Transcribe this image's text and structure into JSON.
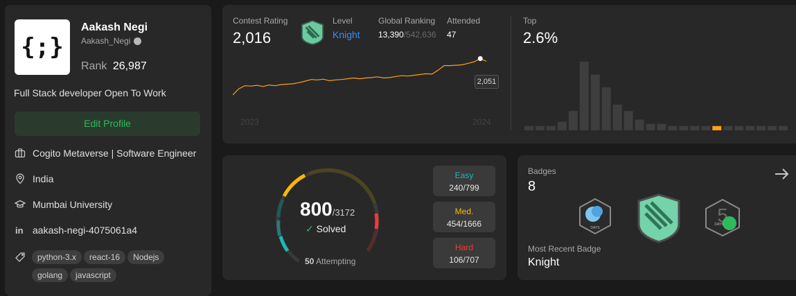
{
  "profile": {
    "name": "Aakash Negi",
    "username": "Aakash_Negi",
    "rank_label": "Rank",
    "rank_value": "26,987",
    "bio": "Full Stack developer Open To Work",
    "edit_button": "Edit Profile",
    "company": "Cogito Metaverse | Software Engineer",
    "location": "India",
    "school": "Mumbai University",
    "linkedin": "aakash-negi-4075061a4",
    "skills": [
      "python-3.x",
      "react-16",
      "Nodejs",
      "golang",
      "javascript"
    ]
  },
  "contest": {
    "rating_label": "Contest Rating",
    "rating_value": "2,016",
    "level_label": "Level",
    "level_value": "Knight",
    "global_label": "Global Ranking",
    "global_rank": "13,390",
    "global_total": "/542,636",
    "attended_label": "Attended",
    "attended_value": "47",
    "top_label": "Top",
    "top_value": "2.6%",
    "tooltip_value": "2,051",
    "year_start": "2023",
    "year_end": "2024"
  },
  "chart_data": {
    "type": "line",
    "title": "Contest Rating",
    "x_labels": [
      "2023",
      "2024"
    ],
    "values": [
      1580,
      1660,
      1700,
      1695,
      1705,
      1690,
      1710,
      1700,
      1715,
      1720,
      1725,
      1740,
      1760,
      1780,
      1775,
      1785,
      1765,
      1775,
      1780,
      1790,
      1800,
      1790,
      1800,
      1805,
      1815,
      1800,
      1805,
      1820,
      1830,
      1825,
      1835,
      1845,
      1855,
      1850,
      1900,
      1960,
      1960,
      1965,
      1970,
      1990,
      2010,
      2051,
      2016
    ],
    "ylim": [
      1500,
      2100
    ],
    "highlight": {
      "index": 41,
      "value": 2051
    },
    "histogram": {
      "type": "bar",
      "values": [
        2,
        2,
        2,
        4,
        9,
        32,
        26,
        20,
        12,
        9,
        5,
        3,
        3,
        2,
        2,
        2,
        2,
        2,
        2,
        2,
        2,
        2,
        2,
        2
      ],
      "highlight_index": 17,
      "ylim": [
        0,
        32
      ]
    }
  },
  "solved": {
    "solved_count": "800",
    "total": "/3172",
    "solved_label": "Solved",
    "attempting_count": "50",
    "attempting_label": "Attempting",
    "easy_label": "Easy",
    "easy_value": "240/799",
    "medium_label": "Med.",
    "medium_value": "454/1666",
    "hard_label": "Hard",
    "hard_value": "106/707",
    "easy_frac": 0.3,
    "medium_frac": 0.27,
    "hard_frac": 0.15
  },
  "badges": {
    "label": "Badges",
    "count": "8",
    "recent_label": "Most Recent Badge",
    "recent_value": "Knight",
    "badge_days_text": "DAYS"
  },
  "colors": {
    "easy": "#1cbaba",
    "medium": "#ffb700",
    "hard": "#f63737",
    "accent": "#ffa116",
    "level": "#2cbb5d",
    "blue": "#3a8ef6"
  }
}
